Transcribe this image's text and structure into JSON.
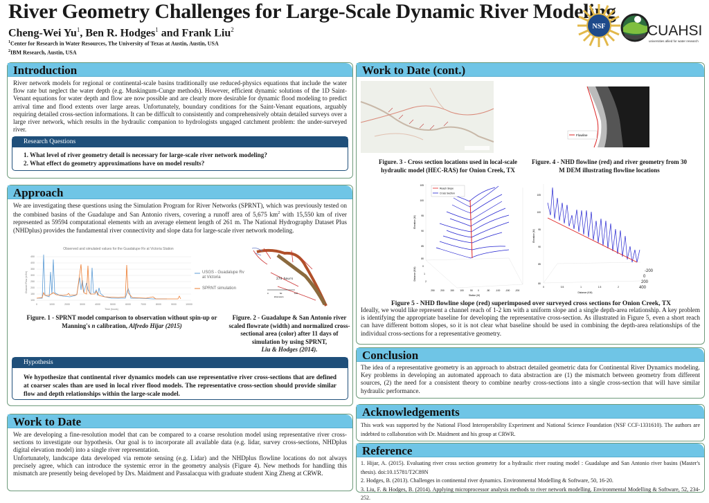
{
  "header": {
    "title": "River Geometry Challenges for Large-Scale Dynamic River Modeling",
    "authors": [
      {
        "name": "Cheng-Wei Yu",
        "aff": "1"
      },
      {
        "name": "Ben R. Hodges",
        "aff": "1"
      },
      {
        "name": "Frank Liu",
        "aff": "2"
      }
    ],
    "sep1": ", ",
    "sep2": " and ",
    "affiliations": [
      {
        "num": "1",
        "text": "Center for Research in Water Resources, The University of Texas at Austin, Austin, USA"
      },
      {
        "num": "2",
        "text": "IBM Research, Austin, USA"
      }
    ],
    "logos": {
      "nsf": "NSF",
      "cuahsi": "CUAHSI",
      "cuahsi_tagline": "universities allied for water research"
    }
  },
  "introduction": {
    "title": "Introduction",
    "body": "River network models for regional or continental-scale basins traditionally use reduced-physics equations that include the water flow rate but neglect the water depth (e.g. Muskingum-Cunge methods). However, efficient dynamic solutions of the 1D Saint-Venant equations for water depth and flow are now possible and are clearly more desirable for dynamic flood modeling to predict arrival time and flood extents over large areas. Unfortunately, boundary conditions for the Saint-Venant equations, arguably requiring detailed cross-section informations. It can be difficult to consistently and comprehensively obtain detailed surveys over a large river network, which results in the hydraulic companion to hydrologists ungaged catchment problem: the under-surveyed river.",
    "research_questions": {
      "title": "Research Questions",
      "items": [
        "1. What level of river geometry detail is necessary for large-scale river network modeling?",
        "2. What effect do geometry approximations have on model results?"
      ]
    }
  },
  "approach": {
    "title": "Approach",
    "body_a": "We are investigating these questions using the Simulation Program for River Networks (SPRNT), which was previously tested on the combined basins of the Guadalupe and San Antonio rivers, covering a runoff area of 5,675 km",
    "body_sup": "2",
    "body_b": " with 15,550 km of river represented as 59594 computational elements with an average element length of 261 m.  The National Hydrography Dataset Plus (NHDplus) provides the fundamental river connectivity and slope data for large-scale river network modeling.",
    "fig1": {
      "chart_title": "Observed and simulated values for the Guadalupe Rv at Victoria Station",
      "xlabel": "Time (hours)",
      "ylabel": "Channel Flow (m3/s)",
      "yticks": [
        "450",
        "400",
        "350",
        "300",
        "250",
        "200",
        "150",
        "100",
        "50",
        "0"
      ],
      "xticks": [
        "0",
        "1000",
        "2000",
        "3000",
        "4000",
        "5000",
        "6000",
        "7000",
        "8000",
        "9000",
        "10000"
      ],
      "legend": [
        "USGS - Guadalupe Rv at Victoria",
        "SPRNT simulation"
      ],
      "colors": {
        "observed": "#5b9bd5",
        "simulated": "#ed7d31"
      },
      "caption_a": "Figure. 1 - SPRNT model comparison to observation without spin-up or Manning's ",
      "caption_n": "n",
      "caption_b": " calibration, ",
      "caption_cite": "Alfredo Hijar (2015)"
    },
    "fig2": {
      "time_label": "274 hours",
      "scale_label": "kilometers",
      "scale_ticks": [
        "0",
        "50",
        "100"
      ],
      "caption": "Figure. 2 - Guadalupe & San Antonio river scaled flowrate (width) and normalized cross-sectional area (color) after 11 days of simulation by using SPRNT,",
      "caption_cite": "Liu & Hodges (2014)."
    },
    "hypothesis": {
      "title": "Hypothesis",
      "body": "We hypothesize that continental river dynamics models can use representative river cross-sections that are defined at coarser scales than are used in local river flood models.  The representative cross-section should provide similar flow and depth relationships within the large-scale model."
    }
  },
  "work_to_date": {
    "title": "Work to Date",
    "p1": "We are developing a fine-resolution model that can be compared to a coarse resolution model using representative river cross-sections to investigate our hypothesis. Our goal is to incorporate all available data (e.g. lidar, survey cross-sections, NHDplus digital elevation model) into a single river representation.",
    "p2": "Unfortunately, landscape data developed via remote sensing (e.g.  Lidar) and the NHDplus flowline locations do not always precisely agree, which can introduce the systemic error in the geometry analysis (Figure 4). New methods for handling this mismatch are presently being developed by Drs. Maidment and Passalacqua with graduate student Xing Zheng at CRWR."
  },
  "work_to_date_cont": {
    "title": "Work to Date (cont.)",
    "fig3_caption": "Figure. 3 - Cross section locations used in local-scale hydraulic model (HEC-RAS) for Onion Creek, TX",
    "fig4_legend": "Flowline",
    "fig4_caption": "Figure. 4 - NHD flowline (red) and river geometry from 30 M DEM illustrating flowline locations",
    "fig5": {
      "legend": [
        "Reach Slope",
        "Cross Section"
      ],
      "colors": {
        "reach_slope": "#e02020",
        "cross_section": "#2020d0"
      },
      "ylabel": "Elevation (M)",
      "station_label": "Station (M)",
      "distance_label": "Distance (KM)",
      "left_yticks": [
        "105",
        "100",
        "95",
        "90",
        "85",
        "80"
      ],
      "left_xticks": [
        "250",
        "200",
        "150",
        "100",
        "50",
        "0",
        "-50",
        "-100",
        "-150",
        "-200"
      ],
      "left_dticks": [
        "0",
        "1",
        "2"
      ],
      "right_yticks": [
        "105",
        "100",
        "95",
        "90",
        "85",
        "80"
      ],
      "right_xticks": [
        "0",
        "0.5",
        "1",
        "1.5",
        "2"
      ],
      "right_sticks": [
        "-200",
        "0",
        "200",
        "400"
      ],
      "caption": "Figure 5 - NHD flowline slope (red) superimposed over surveyed cross sections for Onion Creek, TX"
    },
    "body": "Ideally, we would like represent a channel reach of 1-2 km with a uniform slope and a single depth-area relationship. A key problem is identifying the appropriate baseline for developing the representative cross-section.  As illustrated in Figure 5, even a short reach can have different bottom slopes, so it is not clear what baseline should be used in combining the depth-area relationships of the individual cross-sections for a representative geometry."
  },
  "conclusion": {
    "title": "Conclusion",
    "body": "The idea of a representative geometry is an approach to abstract detailed geometric data for Continental River Dynamics modeling.  Key problems in developing an automated approach to data abstraction are (1) the mismatch between geometry from different sources, (2) the need for a consistent theory to combine nearby cross-sections into a single cross-section that will have similar hydraulic performance."
  },
  "acknowledgements": {
    "title": "Acknowledgements",
    "body": "This work was supported by the National Flood Interoperability Experiment and National Science Foundation (NSF CCF-1331610).  The authors are indebted to collaboration with Dr. Maidment and his group at CRWR."
  },
  "reference": {
    "title": "Reference",
    "items": [
      "1.  Hijar, A. (2015). Evaluating river cross section geometry for a hydraulic river routing model : Guadalupe and San Antonio river basins (Master's thesis). doi:10.15781/T2C89N",
      "2. Hodges, B. (2013). Challenges in continental river dynamics. Environmental Modelling & Software, 50, 16-20.",
      "3. Liu, F. & Hodges, B. (2014). Applying microprocessor analysis methods to river network modelling. Environmental Modelling & Software, 52, 234-252."
    ]
  },
  "theme": {
    "header_blue": "#6fc5e6",
    "inner_navy": "#1f4f7a",
    "border_green": "#6d9a7a"
  }
}
